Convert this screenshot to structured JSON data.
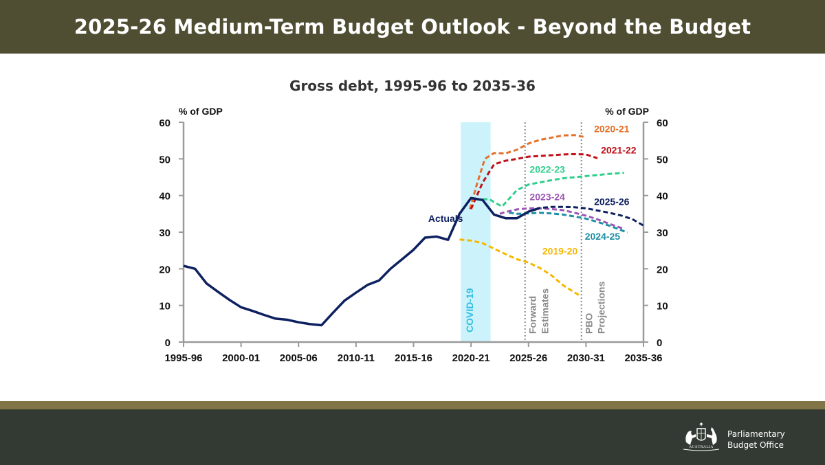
{
  "header": {
    "title": "2025-26 Medium-Term Budget Outlook - Beyond the Budget"
  },
  "footer": {
    "org_line1": "Parliamentary",
    "org_line2": "Budget Office",
    "crest_text": "AUSTRALIA"
  },
  "chart_data": {
    "type": "line",
    "title": "Gross debt, 1995-96 to 2035-36",
    "ylabel_left": "% of GDP",
    "ylabel_right": "% of GDP",
    "ylim": [
      0,
      60
    ],
    "yticks": [
      0,
      10,
      20,
      30,
      40,
      50,
      60
    ],
    "xlim": [
      1995,
      2035
    ],
    "xticks": [
      {
        "x": 1995,
        "label": "1995-96"
      },
      {
        "x": 2000,
        "label": "2000-01"
      },
      {
        "x": 2005,
        "label": "2005-06"
      },
      {
        "x": 2010,
        "label": "2010-11"
      },
      {
        "x": 2015,
        "label": "2015-16"
      },
      {
        "x": 2020,
        "label": "2020-21"
      },
      {
        "x": 2025,
        "label": "2025-26"
      },
      {
        "x": 2030,
        "label": "2030-31"
      },
      {
        "x": 2035,
        "label": "2035-36"
      }
    ],
    "shaded_region": {
      "label": "COVID-19",
      "x_start": 2019.1,
      "x_end": 2021.7,
      "color": "#ccf3fb"
    },
    "vertical_markers": [
      {
        "x": 2024.7,
        "label_line1": "Forward",
        "label_line2": "Estimates"
      },
      {
        "x": 2029.6,
        "label_line1": "PBO",
        "label_line2": "Projections"
      }
    ],
    "series": [
      {
        "name": "Actuals",
        "color": "#0d2060",
        "dash": false,
        "x": [
          1995,
          1996,
          1997,
          1998,
          1999,
          2000,
          2001,
          2002,
          2003,
          2004,
          2005,
          2006,
          2007,
          2008,
          2009,
          2010,
          2011,
          2012,
          2013,
          2014,
          2015,
          2016,
          2017,
          2018,
          2019,
          2020,
          2021,
          2022,
          2023,
          2024,
          2025,
          2026
        ],
        "y": [
          20.8,
          20,
          16,
          13.7,
          11.5,
          9.5,
          8.5,
          7.4,
          6.4,
          6.1,
          5.4,
          4.9,
          4.6,
          8,
          11.3,
          13.5,
          15.6,
          16.8,
          20,
          22.6,
          25.2,
          28.5,
          28.8,
          27.9,
          35,
          39.3,
          38.8,
          34.8,
          33.8,
          33.8,
          35.6,
          36.6
        ]
      },
      {
        "name": "2019-20",
        "color": "#f5b800",
        "dash": true,
        "x": [
          2019,
          2020,
          2021,
          2022,
          2023,
          2024,
          2025,
          2026,
          2027,
          2028,
          2029.5
        ],
        "y": [
          28,
          27.7,
          27,
          25.5,
          24,
          22.6,
          21.7,
          20.2,
          18.2,
          15.5,
          12.6
        ]
      },
      {
        "name": "2020-21",
        "color": "#e5702a",
        "dash": true,
        "x": [
          2019.9,
          2020.5,
          2021.2,
          2022,
          2023,
          2024,
          2025,
          2026,
          2027,
          2028,
          2029,
          2030
        ],
        "y": [
          36.3,
          43,
          50,
          51.6,
          51.5,
          52.5,
          54.2,
          55.2,
          55.8,
          56.4,
          56.5,
          55.9
        ]
      },
      {
        "name": "2021-22",
        "color": "#c0111b",
        "dash": true,
        "x": [
          2020,
          2021,
          2022,
          2023,
          2024,
          2025,
          2026,
          2027,
          2028,
          2029,
          2030,
          2031
        ],
        "y": [
          36.3,
          43.5,
          48.5,
          49.5,
          50,
          50.6,
          50.8,
          51,
          51.2,
          51.3,
          51.2,
          50.2
        ]
      },
      {
        "name": "2022-23",
        "color": "#2ecf8a",
        "dash": true,
        "x": [
          2021,
          2021.6,
          2022,
          2022.7,
          2024,
          2025,
          2026,
          2027,
          2028,
          2029,
          2030,
          2031,
          2032,
          2033.3
        ],
        "y": [
          39,
          39,
          38.2,
          37,
          41.5,
          43,
          43.6,
          44.2,
          44.7,
          45,
          45.3,
          45.6,
          45.9,
          46.2
        ]
      },
      {
        "name": "2023-24",
        "color": "#9b56b3",
        "dash": true,
        "x": [
          2022.5,
          2023,
          2024,
          2025,
          2026,
          2027,
          2028,
          2029,
          2030,
          2031,
          2032,
          2033.2
        ],
        "y": [
          35,
          35.5,
          36.2,
          36.5,
          36.5,
          36.3,
          36,
          35.3,
          34.5,
          33.5,
          32.3,
          31
        ]
      },
      {
        "name": "2024-25",
        "color": "#1d8fa5",
        "dash": true,
        "x": [
          2023.3,
          2024,
          2025,
          2026,
          2027,
          2028,
          2029,
          2030,
          2031,
          2032,
          2033.6
        ],
        "y": [
          35.3,
          35,
          35.1,
          35.3,
          35.1,
          34.8,
          34.3,
          33.7,
          32.8,
          31.8,
          29.9
        ]
      },
      {
        "name": "2025-26",
        "color": "#0d2060",
        "dash": true,
        "x": [
          2025,
          2026,
          2027,
          2028,
          2029,
          2030,
          2031,
          2032,
          2033,
          2034,
          2035
        ],
        "y": [
          35.6,
          36.6,
          36.9,
          36.9,
          36.8,
          36.5,
          35.9,
          35.3,
          34.6,
          33.6,
          31.8
        ]
      }
    ],
    "annotations": [
      {
        "text": "Actuals",
        "series": "Actuals"
      },
      {
        "text": "2019-20",
        "series": "2019-20"
      },
      {
        "text": "2020-21",
        "series": "2020-21"
      },
      {
        "text": "2021-22",
        "series": "2021-22"
      },
      {
        "text": "2022-23",
        "series": "2022-23"
      },
      {
        "text": "2023-24",
        "series": "2023-24"
      },
      {
        "text": "2024-25",
        "series": "2024-25"
      },
      {
        "text": "2025-26",
        "series": "2025-26"
      }
    ],
    "grid": false,
    "legend": "none"
  }
}
